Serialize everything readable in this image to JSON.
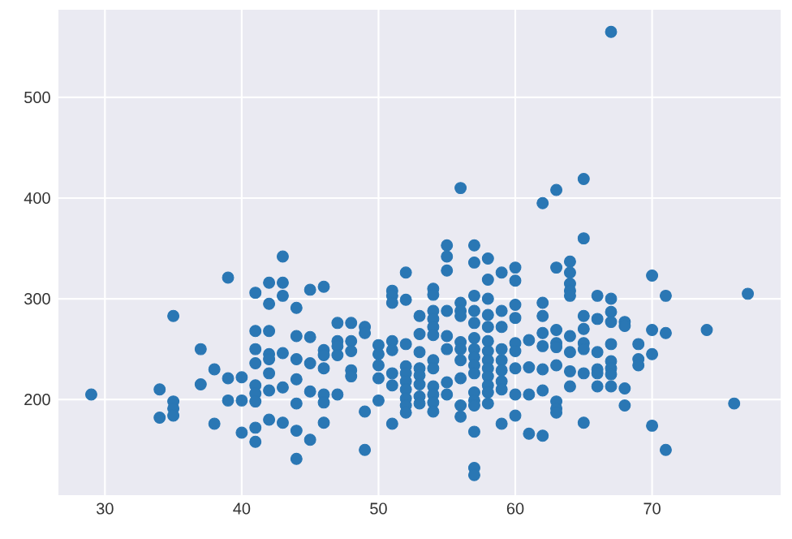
{
  "chart_data": {
    "type": "scatter",
    "color": "#2a77b4",
    "marker": "circle",
    "grid": true,
    "xlim": [
      26.6,
      79.4
    ],
    "ylim": [
      105,
      587
    ],
    "xticks": [
      30,
      40,
      50,
      60,
      70
    ],
    "yticks": [
      200,
      300,
      400,
      500
    ],
    "x": [
      29,
      34,
      34,
      35,
      35,
      35,
      35,
      37,
      37,
      38,
      38,
      39,
      39,
      39,
      40,
      40,
      40,
      41,
      41,
      41,
      41,
      41,
      41,
      41,
      41,
      41,
      42,
      42,
      42,
      42,
      42,
      42,
      42,
      42,
      43,
      43,
      43,
      43,
      43,
      43,
      44,
      44,
      44,
      44,
      44,
      44,
      44,
      45,
      45,
      45,
      45,
      45,
      46,
      46,
      46,
      46,
      46,
      46,
      46,
      47,
      47,
      47,
      47,
      47,
      48,
      48,
      48,
      48,
      48,
      49,
      49,
      49,
      49,
      50,
      50,
      50,
      50,
      50,
      51,
      51,
      51,
      51,
      51,
      51,
      51,
      51,
      52,
      52,
      52,
      52,
      52,
      52,
      52,
      52,
      52,
      52,
      53,
      53,
      53,
      53,
      53,
      53,
      53,
      53,
      54,
      54,
      54,
      54,
      54,
      54,
      54,
      54,
      54,
      54,
      54,
      54,
      55,
      55,
      55,
      55,
      55,
      55,
      55,
      55,
      56,
      56,
      56,
      56,
      56,
      56,
      56,
      56,
      56,
      56,
      57,
      57,
      57,
      57,
      57,
      57,
      57,
      57,
      57,
      57,
      57,
      57,
      57,
      57,
      57,
      57,
      58,
      58,
      58,
      58,
      58,
      58,
      58,
      58,
      58,
      58,
      58,
      58,
      58,
      59,
      59,
      59,
      59,
      59,
      59,
      59,
      59,
      59,
      60,
      60,
      60,
      60,
      60,
      60,
      60,
      60,
      60,
      61,
      61,
      61,
      61,
      62,
      62,
      62,
      62,
      62,
      62,
      62,
      62,
      63,
      63,
      63,
      63,
      63,
      63,
      63,
      63,
      63,
      64,
      64,
      64,
      64,
      64,
      64,
      64,
      64,
      64,
      65,
      65,
      65,
      65,
      65,
      65,
      65,
      65,
      66,
      66,
      66,
      66,
      66,
      66,
      67,
      67,
      67,
      67,
      67,
      67,
      67,
      67,
      67,
      68,
      68,
      68,
      68,
      69,
      69,
      69,
      70,
      70,
      70,
      70,
      71,
      71,
      71,
      74,
      76,
      77
    ],
    "values": [
      205,
      210,
      182,
      283,
      198,
      191,
      184,
      250,
      215,
      230,
      176,
      321,
      221,
      199,
      222,
      199,
      167,
      306,
      268,
      250,
      236,
      214,
      206,
      198,
      172,
      158,
      316,
      295,
      268,
      245,
      240,
      226,
      209,
      180,
      342,
      316,
      303,
      246,
      212,
      177,
      291,
      263,
      240,
      220,
      196,
      169,
      141,
      309,
      262,
      236,
      208,
      160,
      312,
      249,
      244,
      231,
      205,
      197,
      177,
      276,
      258,
      253,
      244,
      205,
      276,
      258,
      248,
      229,
      223,
      272,
      266,
      188,
      150,
      254,
      245,
      234,
      221,
      199,
      308,
      303,
      296,
      258,
      249,
      226,
      214,
      176,
      326,
      299,
      255,
      233,
      226,
      218,
      210,
      201,
      194,
      187,
      283,
      265,
      247,
      231,
      224,
      215,
      203,
      196,
      310,
      304,
      288,
      280,
      272,
      264,
      239,
      231,
      213,
      205,
      197,
      188,
      353,
      342,
      328,
      288,
      263,
      250,
      217,
      205,
      410,
      296,
      288,
      283,
      257,
      250,
      239,
      221,
      194,
      183,
      353,
      336,
      303,
      288,
      276,
      261,
      250,
      242,
      234,
      226,
      207,
      199,
      194,
      168,
      132,
      125,
      340,
      319,
      300,
      284,
      272,
      258,
      248,
      239,
      231,
      223,
      214,
      207,
      196,
      326,
      288,
      272,
      250,
      239,
      229,
      218,
      210,
      176,
      331,
      318,
      294,
      281,
      256,
      248,
      231,
      205,
      184,
      259,
      232,
      205,
      166,
      395,
      296,
      283,
      266,
      253,
      230,
      209,
      164,
      408,
      331,
      269,
      256,
      252,
      234,
      198,
      191,
      187,
      337,
      326,
      315,
      308,
      303,
      263,
      247,
      228,
      213,
      419,
      360,
      283,
      270,
      256,
      250,
      226,
      177,
      303,
      280,
      247,
      230,
      226,
      213,
      565,
      300,
      287,
      277,
      255,
      238,
      231,
      225,
      213,
      277,
      273,
      211,
      194,
      255,
      240,
      234,
      323,
      269,
      245,
      174,
      303,
      266,
      150,
      269,
      196,
      305
    ]
  }
}
